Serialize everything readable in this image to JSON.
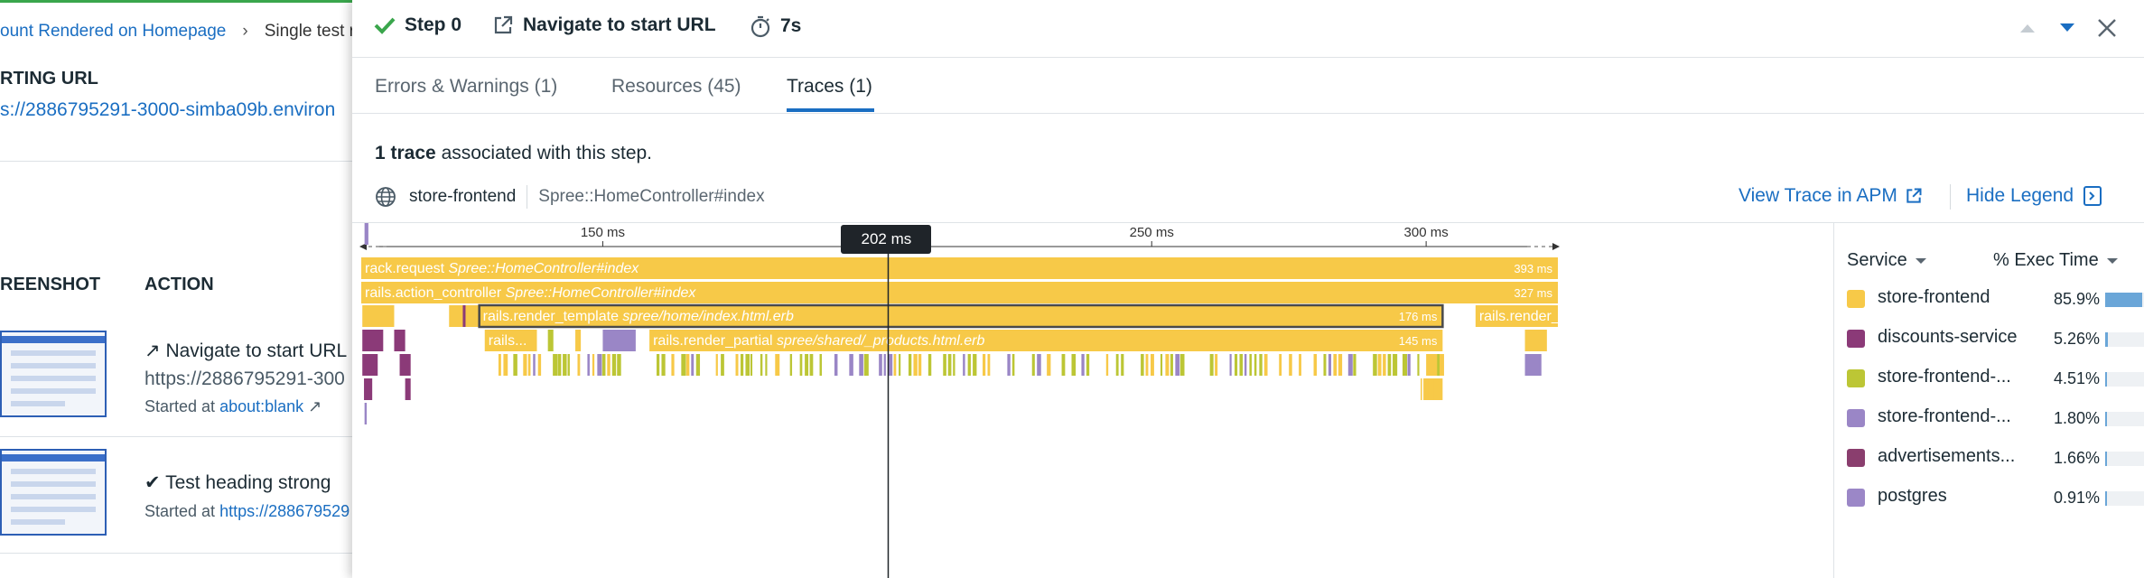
{
  "background": {
    "breadcrumbs": [
      "ount Rendered on Homepage",
      "Single test r"
    ],
    "starting_url_label": "RTING URL",
    "starting_url": "s://2886795291-3000-simba09b.environ",
    "columns": {
      "screenshot": "REENSHOT",
      "action": "ACTION"
    },
    "steps": [
      {
        "title": "Navigate to start URL",
        "subtitle": "https://2886795291-300",
        "started_prefix": "Started at",
        "started_link": "about:blank"
      },
      {
        "title": "Test heading strong",
        "started_prefix": "Started at",
        "started_link": "https://288679529"
      }
    ]
  },
  "panel": {
    "header": {
      "step": "Step 0",
      "action": "Navigate to start URL",
      "duration": "7s"
    },
    "tabs": [
      {
        "label": "Errors & Warnings (1)",
        "active": false
      },
      {
        "label": "Resources (45)",
        "active": false
      },
      {
        "label": "Traces (1)",
        "active": true
      }
    ],
    "summary": {
      "count": "1 trace",
      "text": "associated with this step."
    },
    "trace": {
      "service": "store-frontend",
      "resource": "Spree::HomeController#index",
      "view_in_apm": "View Trace in APM",
      "hide_legend": "Hide Legend"
    },
    "timeline": {
      "ticks": [
        "150 ms",
        "250 ms",
        "300 ms"
      ],
      "cursor_label": "202 ms",
      "start_ms": 106,
      "end_ms": 324,
      "tick_values": [
        150,
        250,
        300
      ],
      "cursor_ms": 202
    },
    "spans": [
      {
        "name": "rack.request",
        "resource": "Spree::HomeController#index",
        "duration": "393 ms",
        "start_ms": 106,
        "end_ms": 324,
        "depth": 0,
        "service": "store-frontend"
      },
      {
        "name": "rails.action_controller",
        "resource": "Spree::HomeController#index",
        "duration": "327 ms",
        "start_ms": 106,
        "end_ms": 324,
        "depth": 1,
        "service": "store-frontend"
      },
      {
        "name": "rails.render_template",
        "resource": "spree/home/index.html.erb",
        "duration": "176 ms",
        "start_ms": 127.5,
        "end_ms": 303,
        "depth": 2,
        "service": "store-frontend",
        "selected": true
      },
      {
        "name": "rails.render_p...",
        "resource": "",
        "duration": "",
        "start_ms": 309,
        "end_ms": 324,
        "depth": 2,
        "service": "store-frontend"
      },
      {
        "name": "rails...",
        "resource": "",
        "duration": "",
        "start_ms": 128.5,
        "end_ms": 138,
        "depth": 3,
        "service": "store-frontend"
      },
      {
        "name": "rails.render_partial",
        "resource": "spree/shared/_products.html.erb",
        "duration": "145 ms",
        "start_ms": 158.5,
        "end_ms": 303,
        "depth": 3,
        "service": "store-frontend"
      }
    ],
    "legend": {
      "service_header": "Service",
      "exec_header": "% Exec Time",
      "items": [
        {
          "name": "store-frontend",
          "pct": "85.9%",
          "value": 85.9,
          "color": "#f7c948"
        },
        {
          "name": "discounts-service",
          "pct": "5.26%",
          "value": 5.26,
          "color": "#8b3a78"
        },
        {
          "name": "store-frontend-...",
          "pct": "4.51%",
          "value": 4.51,
          "color": "#bcc635"
        },
        {
          "name": "store-frontend-...",
          "pct": "1.80%",
          "value": 1.8,
          "color": "#9a86c6"
        },
        {
          "name": "advertisements...",
          "pct": "1.66%",
          "value": 1.66,
          "color": "#8a3e6e"
        },
        {
          "name": "postgres",
          "pct": "0.91%",
          "value": 0.91,
          "color": "#9b87c7"
        }
      ]
    },
    "colors": {
      "accent": "#1a6ec2",
      "span": "#f7c948",
      "success": "#3aa64c"
    }
  }
}
